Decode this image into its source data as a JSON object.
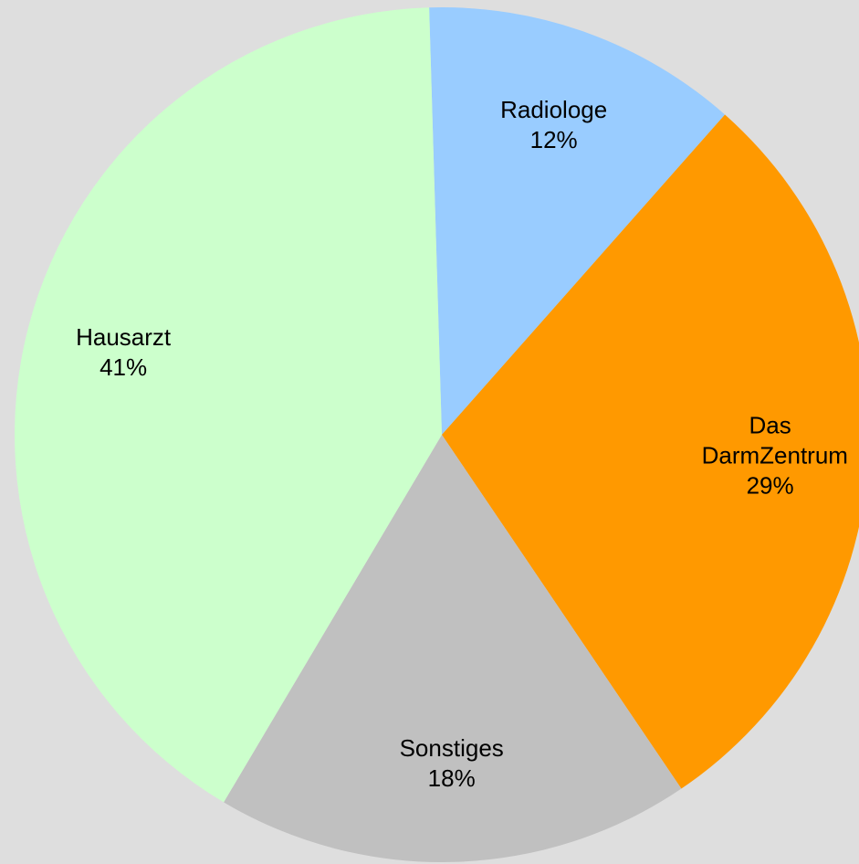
{
  "chart_data": {
    "type": "pie",
    "categories": [
      "Radiologe",
      "Das DarmZentrum",
      "Sonstiges",
      "Hausarzt"
    ],
    "values": [
      12,
      29,
      18,
      41
    ],
    "value_labels": [
      "12%",
      "29%",
      "18%",
      "41%"
    ],
    "colors": [
      "#99ccff",
      "#ff9900",
      "#c0c0c0",
      "#ccffcc"
    ]
  }
}
